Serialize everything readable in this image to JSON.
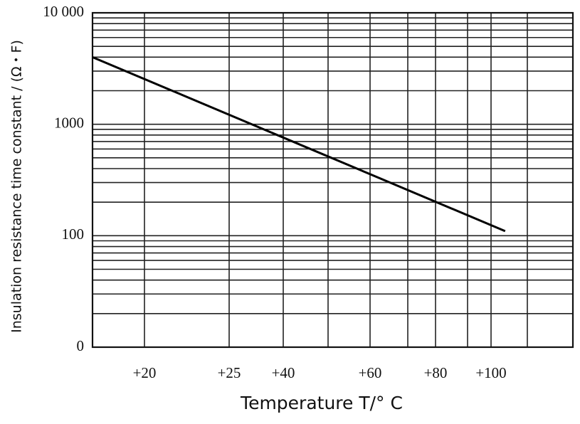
{
  "chart_data": {
    "type": "line",
    "x_title": "Temperature T/° C",
    "y_title": "Insulation resistance time constant / (Ω・F)",
    "x": [
      17,
      105
    ],
    "series": [
      {
        "color": "#000000",
        "values": [
          4000,
          110
        ]
      }
    ],
    "xlim": [
      17,
      129
    ],
    "xticks": [
      {
        "value": 20,
        "label": "+20"
      },
      {
        "value": 25,
        "label": "+25"
      },
      {
        "value": 40,
        "label": "+40"
      },
      {
        "value": 60,
        "label": "+60"
      },
      {
        "value": 80,
        "label": "+80"
      },
      {
        "value": 100,
        "label": "+100"
      }
    ],
    "ylim": [
      10,
      10000
    ],
    "yticks": [
      {
        "value": 10,
        "label": "0"
      },
      100,
      1000,
      {
        "value": 10000,
        "label": "10 000"
      }
    ],
    "log_y": true,
    "grid": true
  }
}
